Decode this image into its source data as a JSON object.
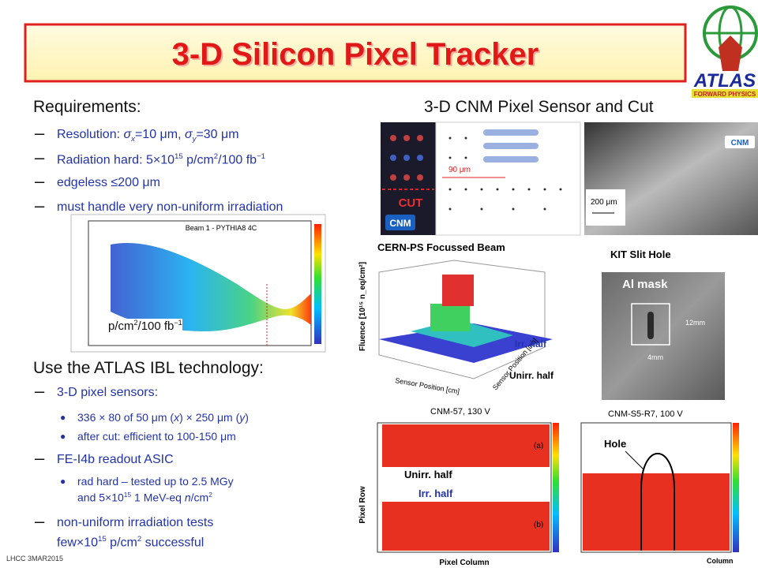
{
  "header": {
    "title": "3-D Silicon Pixel Tracker",
    "logo": "ATLAS",
    "logo_sub": "FORWARD PHYSICS"
  },
  "requirements": {
    "heading": "Requirements:",
    "lines": [
      [
        "Resolution: ",
        "σ",
        "x",
        "=10 μm, ",
        "σ",
        "y",
        "=30 μm"
      ],
      [
        "Radiation hard: 5×10",
        "15",
        " p/cm",
        "2",
        "/100 fb",
        "−1"
      ],
      [
        "edgeless ≤200 μm"
      ],
      [
        "must handle very non-uniform irradiation"
      ]
    ]
  },
  "beam_plot": {
    "title": "Beam 1 - PYTHIA8 4C",
    "unit": [
      "p/cm",
      "2",
      "/100 fb",
      "−1"
    ]
  },
  "technology": {
    "heading": "Use the ATLAS IBL technology:",
    "lines": [
      [
        "3-D pixel sensors:"
      ],
      [
        "336 × 80 of 50 μm (",
        "x",
        ") × 250 μm (",
        "y",
        ")"
      ],
      [
        "after cut: efficient to 100-150 μm"
      ],
      [
        "FE-I4b readout ASIC"
      ],
      [
        "rad hard – tested up to 2.5 MGy"
      ],
      [
        "and 5×10",
        "15",
        " 1 MeV-eq ",
        "n",
        "/cm",
        "2"
      ],
      [
        "non-uniform irradiation tests"
      ],
      [
        "few×10",
        "15",
        " p/cm",
        "2",
        " successful"
      ]
    ]
  },
  "sensor": {
    "heading": "3-D CNM Pixel Sensor and Cut",
    "cut": "CUT",
    "pitch": "90 μm",
    "scale": "200 μm",
    "maker": "CNM"
  },
  "cern_ps": {
    "title": "CERN-PS Focussed Beam",
    "y_label": "Fluence [10¹⁵ n_eq/cm²]",
    "x_label": "Sensor Position [cm]",
    "x_label2": "Sensor Position [cm]",
    "irr": "Irr. half",
    "unirr": "Unirr. half"
  },
  "kit": {
    "title": "KIT Slit Hole",
    "mask": "Al mask",
    "width": "12mm",
    "slit": "4mm"
  },
  "maps": {
    "left_title": "CNM-57, 130 V",
    "right_title": "CNM-S5-R7, 100 V",
    "y_label": "Pixel Row",
    "x_label": "Pixel Column",
    "x_label_right": "Column",
    "panel_a": "(a)",
    "panel_b": "(b)",
    "unirr": "Unirr. half",
    "irr": "Irr. half",
    "hole": "Hole"
  },
  "footer": "LHCC 3MAR2015"
}
